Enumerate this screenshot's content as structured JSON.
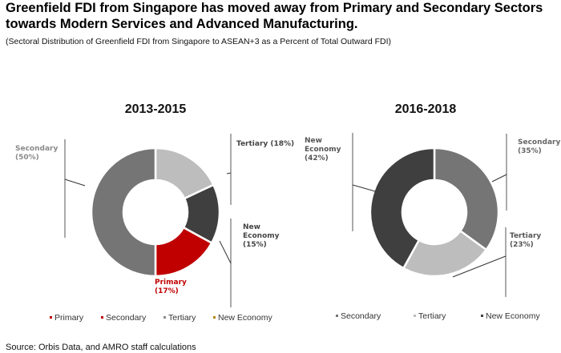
{
  "header": {
    "title": "Greenfield FDI from Singapore has moved away from Primary and Secondary Sectors towards Modern Services and Advanced Manufacturing.",
    "subtitle": "(Sectoral Distribution of Greenfield FDI from Singapore to ASEAN+3 as a Percent of Total Outward FDI)"
  },
  "footer": {
    "source": "Source: Orbis Data, and AMRO staff calculations"
  },
  "chart_data": [
    {
      "type": "pie",
      "variant": "donut",
      "title": "2013-2015",
      "slices": [
        {
          "name": "Tertiary",
          "value": 18,
          "color": "#bdbdbd",
          "label": [
            "Tertiary (18%)"
          ],
          "label_color": "#444444"
        },
        {
          "name": "New Economy",
          "value": 15,
          "color": "#3f3f3f",
          "label": [
            "New",
            "Economy",
            "(15%)"
          ],
          "label_color": "#444444"
        },
        {
          "name": "Primary",
          "value": 17,
          "color": "#c00000",
          "label": [
            "Primary",
            "(17%)"
          ],
          "label_color": "#c00000"
        },
        {
          "name": "Secondary",
          "value": 50,
          "color": "#757575",
          "label": [
            "Secondary",
            "(50%)"
          ],
          "label_color": "#8a8a8a"
        }
      ],
      "legend": {
        "placement": "bottom",
        "items": [
          {
            "name": "Primary",
            "color": "#c00000"
          },
          {
            "name": "Secondary",
            "color": "#c00000"
          },
          {
            "name": "Tertiary",
            "color": "#8a8a8a"
          },
          {
            "name": "New Economy",
            "color": "#b8860b"
          }
        ]
      }
    },
    {
      "type": "pie",
      "variant": "donut",
      "title": "2016-2018",
      "slices": [
        {
          "name": "Secondary",
          "value": 35,
          "color": "#757575",
          "label": [
            "Secondary",
            "(35%)"
          ],
          "label_color": "#666666"
        },
        {
          "name": "Tertiary",
          "value": 23,
          "color": "#bdbdbd",
          "label": [
            "Tertiary",
            "(23%)"
          ],
          "label_color": "#555555"
        },
        {
          "name": "New Economy",
          "value": 42,
          "color": "#3f3f3f",
          "label": [
            "New",
            "Economy",
            "(42%)"
          ],
          "label_color": "#555555"
        }
      ],
      "legend": {
        "placement": "bottom",
        "items": [
          {
            "name": "Secondary",
            "color": "#757575"
          },
          {
            "name": "Tertiary",
            "color": "#bdbdbd"
          },
          {
            "name": "New Economy",
            "color": "#3f3f3f"
          }
        ]
      }
    }
  ]
}
